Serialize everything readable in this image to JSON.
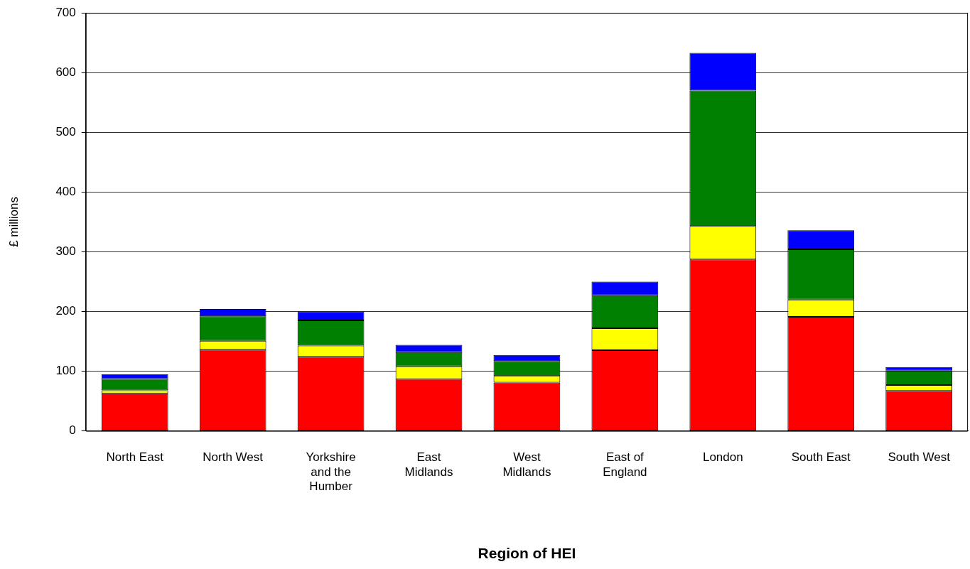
{
  "chart_data": {
    "type": "bar",
    "stacked": true,
    "xlabel": "Region of HEI",
    "ylabel": "£ millions",
    "categories": [
      "North East",
      "North West",
      "Yorkshire and the Humber",
      "East Midlands",
      "West Midlands",
      "East of England",
      "London",
      "South East",
      "South West"
    ],
    "series": [
      {
        "color": "#ff0000",
        "values": [
          63,
          136,
          124,
          87,
          81,
          135,
          287,
          191,
          67
        ]
      },
      {
        "color": "#ffff00",
        "values": [
          5,
          15,
          19,
          21,
          11,
          37,
          56,
          29,
          10
        ]
      },
      {
        "color": "#008000",
        "values": [
          19,
          41,
          42,
          24,
          25,
          55,
          227,
          84,
          24
        ]
      },
      {
        "color": "#0000ff",
        "values": [
          8,
          12,
          15,
          12,
          10,
          23,
          63,
          32,
          6
        ]
      }
    ],
    "ylim": [
      0,
      700
    ],
    "yticks": [
      0,
      100,
      200,
      300,
      400,
      500,
      600,
      700
    ],
    "grid": "y",
    "legend": false
  }
}
